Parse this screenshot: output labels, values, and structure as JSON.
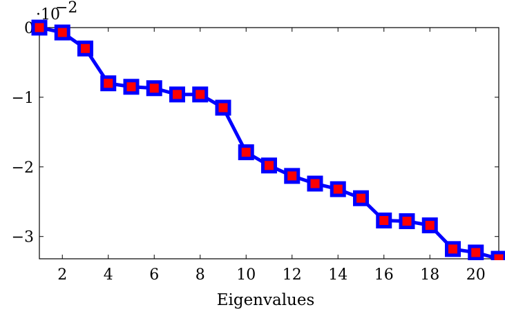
{
  "chart_data": {
    "type": "line",
    "title": "",
    "xlabel": "Eigenvalues",
    "ylabel": "",
    "y_scale_label": "·10",
    "y_scale_exponent": "−2",
    "xlim": [
      1,
      21
    ],
    "ylim": [
      -3.32,
      0
    ],
    "x_ticks": [
      2,
      4,
      6,
      8,
      10,
      12,
      14,
      16,
      18,
      20
    ],
    "x_tick_labels": [
      "2",
      "4",
      "6",
      "8",
      "10",
      "12",
      "14",
      "16",
      "18",
      "20"
    ],
    "y_ticks": [
      0,
      -1,
      -2,
      -3
    ],
    "y_tick_labels": [
      "0",
      "−1",
      "−2",
      "−3"
    ],
    "grid": false,
    "legend": "none",
    "line_color": "#0000ff",
    "marker": "square",
    "marker_fill": "#ff0000",
    "marker_edge": "#0000ff",
    "series": [
      {
        "x": [
          1,
          2,
          3,
          4,
          5,
          6,
          7,
          8,
          9,
          10,
          11,
          12,
          13,
          14,
          15,
          16,
          17,
          18,
          19,
          20,
          21
        ],
        "values": [
          0,
          -0.07,
          -0.3,
          -0.8,
          -0.85,
          -0.87,
          -0.96,
          -0.96,
          -1.15,
          -1.79,
          -1.98,
          -2.13,
          -2.24,
          -2.32,
          -2.45,
          -2.77,
          -2.78,
          -2.84,
          -3.18,
          -3.23,
          -3.32
        ]
      }
    ]
  }
}
